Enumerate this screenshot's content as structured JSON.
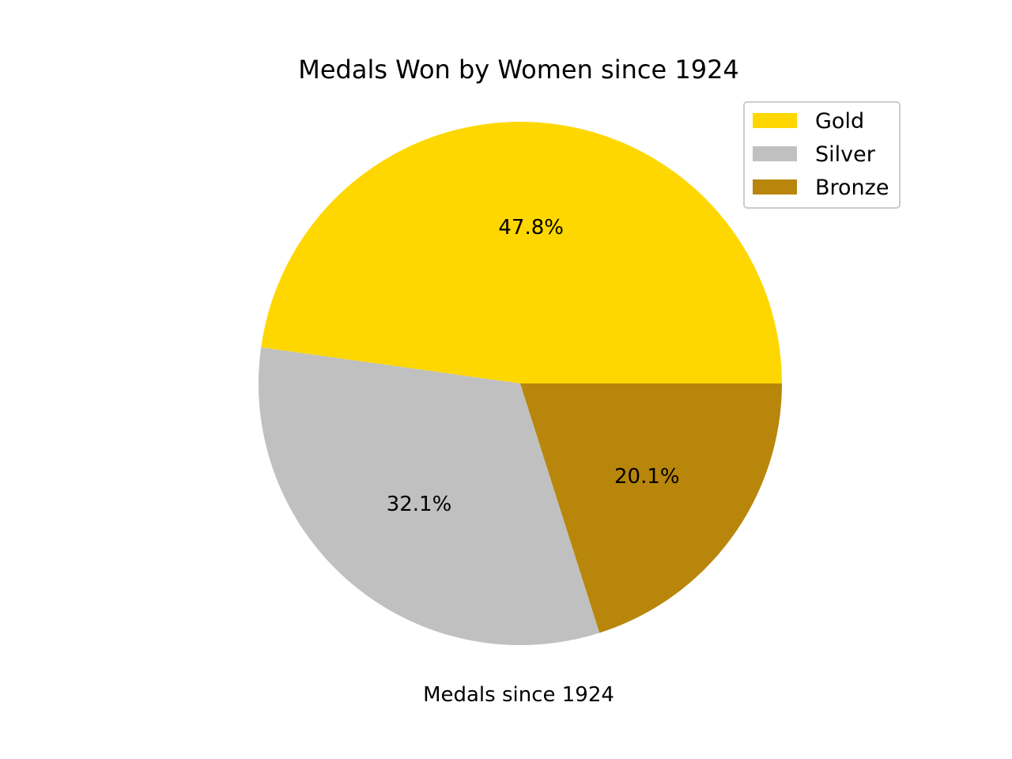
{
  "chart_data": {
    "type": "pie",
    "title": "Medals Won by Women since 1924",
    "xlabel": "Medals since 1924",
    "start_angle_deg": 0,
    "direction": "counterclockwise",
    "legend_position": "top-right",
    "slices": [
      {
        "label": "Gold",
        "pct": 47.8,
        "pct_label": "47.8%",
        "color": "#FFD700"
      },
      {
        "label": "Silver",
        "pct": 32.1,
        "pct_label": "32.1%",
        "color": "#C0C0C0"
      },
      {
        "label": "Bronze",
        "pct": 20.1,
        "pct_label": "20.1%",
        "color": "#B8860B"
      }
    ]
  }
}
